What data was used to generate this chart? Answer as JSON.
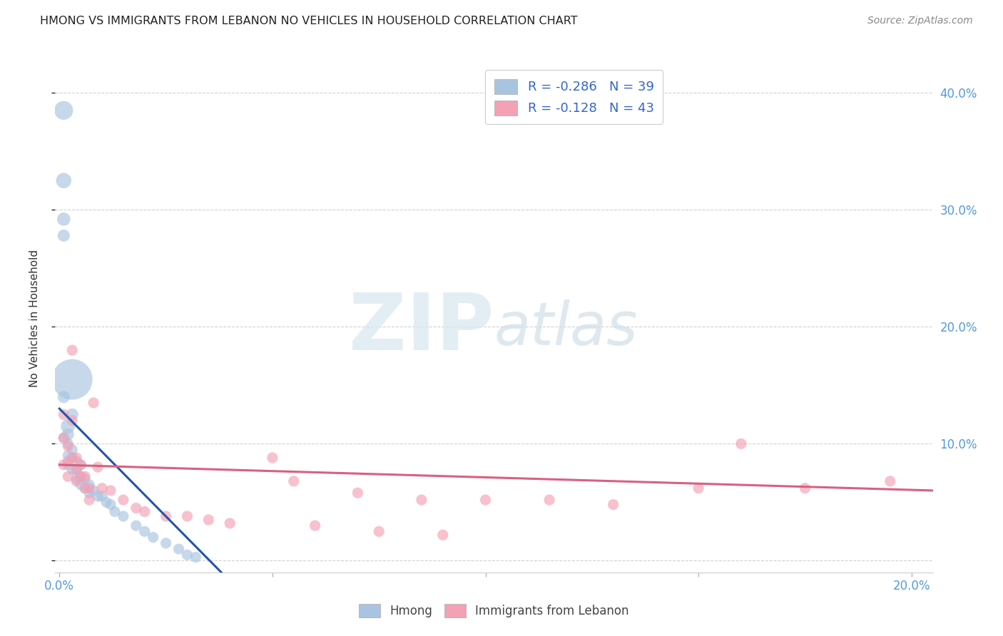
{
  "title": "HMONG VS IMMIGRANTS FROM LEBANON NO VEHICLES IN HOUSEHOLD CORRELATION CHART",
  "source": "Source: ZipAtlas.com",
  "ylabel": "No Vehicles in Household",
  "watermark_zip": "ZIP",
  "watermark_atlas": "atlas",
  "legend_hmong": {
    "R": "-0.286",
    "N": "39"
  },
  "legend_lebanon": {
    "R": "-0.128",
    "N": "43"
  },
  "xlim": [
    -0.001,
    0.205
  ],
  "ylim": [
    -0.01,
    0.425
  ],
  "xticks": [
    0.0,
    0.05,
    0.1,
    0.15,
    0.2
  ],
  "xtick_labels": [
    "0.0%",
    "",
    "",
    "",
    "20.0%"
  ],
  "yticks": [
    0.0,
    0.1,
    0.2,
    0.3,
    0.4
  ],
  "ytick_labels_right": [
    "",
    "10.0%",
    "20.0%",
    "30.0%",
    "40.0%"
  ],
  "hmong_color": "#a8c4e0",
  "hmong_line_color": "#2255aa",
  "lebanon_color": "#f4a0b5",
  "lebanon_line_color": "#d96080",
  "background_color": "#ffffff",
  "grid_color": "#cccccc",
  "title_color": "#222222",
  "tick_color": "#5599dd",
  "legend_text_color": "#3366cc",
  "hmong_x": [
    0.001,
    0.001,
    0.001,
    0.001,
    0.001,
    0.001,
    0.002,
    0.002,
    0.002,
    0.002,
    0.002,
    0.003,
    0.003,
    0.003,
    0.003,
    0.004,
    0.004,
    0.004,
    0.005,
    0.005,
    0.005,
    0.006,
    0.006,
    0.007,
    0.007,
    0.008,
    0.009,
    0.01,
    0.011,
    0.012,
    0.013,
    0.015,
    0.018,
    0.02,
    0.022,
    0.025,
    0.028,
    0.03,
    0.032
  ],
  "hmong_y": [
    0.385,
    0.325,
    0.292,
    0.278,
    0.14,
    0.105,
    0.115,
    0.108,
    0.1,
    0.09,
    0.082,
    0.125,
    0.095,
    0.088,
    0.078,
    0.085,
    0.078,
    0.07,
    0.082,
    0.072,
    0.065,
    0.07,
    0.062,
    0.065,
    0.058,
    0.06,
    0.055,
    0.055,
    0.05,
    0.048,
    0.042,
    0.038,
    0.03,
    0.025,
    0.02,
    0.015,
    0.01,
    0.005,
    0.003
  ],
  "hmong_size": [
    60,
    40,
    30,
    25,
    25,
    20,
    35,
    25,
    20,
    20,
    20,
    25,
    20,
    20,
    20,
    20,
    20,
    20,
    20,
    20,
    20,
    20,
    20,
    20,
    20,
    20,
    20,
    20,
    20,
    20,
    20,
    20,
    20,
    20,
    20,
    20,
    20,
    20,
    20
  ],
  "hmong_big_x": [
    0.003
  ],
  "hmong_big_y": [
    0.155
  ],
  "hmong_big_size": [
    280
  ],
  "lebanon_x": [
    0.001,
    0.001,
    0.001,
    0.002,
    0.002,
    0.002,
    0.003,
    0.003,
    0.003,
    0.004,
    0.004,
    0.004,
    0.005,
    0.005,
    0.006,
    0.006,
    0.007,
    0.007,
    0.008,
    0.009,
    0.01,
    0.012,
    0.015,
    0.018,
    0.02,
    0.025,
    0.03,
    0.035,
    0.04,
    0.05,
    0.055,
    0.06,
    0.07,
    0.075,
    0.085,
    0.09,
    0.1,
    0.115,
    0.13,
    0.15,
    0.16,
    0.175,
    0.195
  ],
  "lebanon_y": [
    0.125,
    0.105,
    0.082,
    0.098,
    0.085,
    0.072,
    0.18,
    0.12,
    0.088,
    0.088,
    0.078,
    0.068,
    0.082,
    0.072,
    0.072,
    0.062,
    0.062,
    0.052,
    0.135,
    0.08,
    0.062,
    0.06,
    0.052,
    0.045,
    0.042,
    0.038,
    0.038,
    0.035,
    0.032,
    0.088,
    0.068,
    0.03,
    0.058,
    0.025,
    0.052,
    0.022,
    0.052,
    0.052,
    0.048,
    0.062,
    0.1,
    0.062,
    0.068
  ],
  "lebanon_size": [
    20,
    20,
    20,
    20,
    20,
    20,
    20,
    20,
    20,
    20,
    20,
    20,
    20,
    20,
    20,
    20,
    20,
    20,
    20,
    20,
    20,
    20,
    20,
    20,
    20,
    20,
    20,
    20,
    20,
    20,
    20,
    20,
    20,
    20,
    20,
    20,
    20,
    20,
    20,
    20,
    20,
    20,
    20
  ],
  "hmong_line_x0": 0.0,
  "hmong_line_x1": 0.038,
  "hmong_line_y0": 0.13,
  "hmong_line_y1": -0.01,
  "lebanon_line_x0": 0.0,
  "lebanon_line_x1": 0.205,
  "lebanon_line_y0": 0.082,
  "lebanon_line_y1": 0.06
}
